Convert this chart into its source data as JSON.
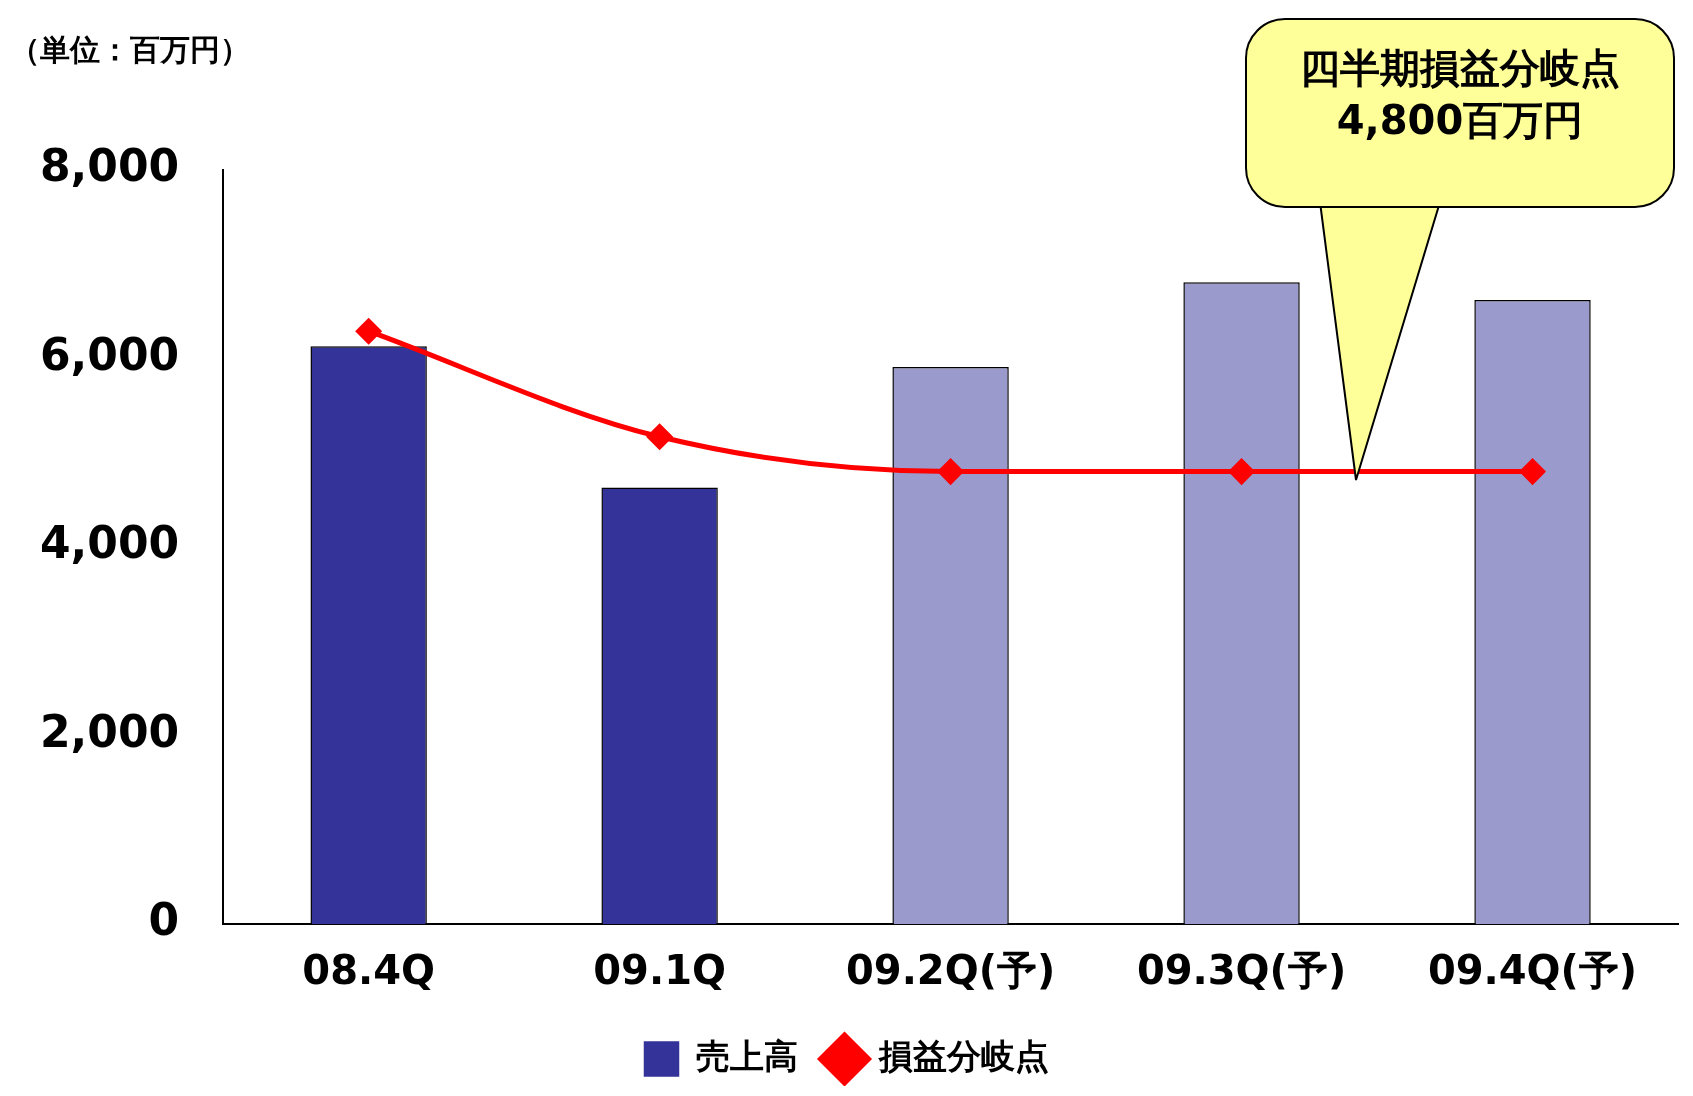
{
  "chart_data": {
    "type": "bar",
    "ylabel": "（単位：百万円）",
    "categories": [
      "08.4Q",
      "09.1Q",
      "09.2Q(予)",
      "09.3Q(予)",
      "09.4Q(予)"
    ],
    "series": [
      {
        "name": "売上高",
        "colors": [
          "#333399",
          "#333399",
          "#9a9acc",
          "#9a9acc",
          "#9a9acc"
        ],
        "color": "#333399",
        "values": [
          6130,
          4630,
          5910,
          6810,
          6620
        ]
      },
      {
        "name": "損益分岐点",
        "type": "line",
        "color": "#ff0000",
        "marker": "diamond",
        "values": [
          6290,
          5170,
          4800,
          4800,
          4800
        ]
      }
    ],
    "ylim": [
      0,
      8000
    ],
    "yticks": [
      {
        "value": 0,
        "label": "0"
      },
      {
        "value": 2000,
        "label": "2,000"
      },
      {
        "value": 4000,
        "label": "4,000"
      },
      {
        "value": 6000,
        "label": "6,000"
      },
      {
        "value": 8000,
        "label": "8,000"
      }
    ],
    "grid": false,
    "legend": "bottom",
    "annotations": [
      "四半期損益分岐点\n4,800百万円"
    ]
  }
}
